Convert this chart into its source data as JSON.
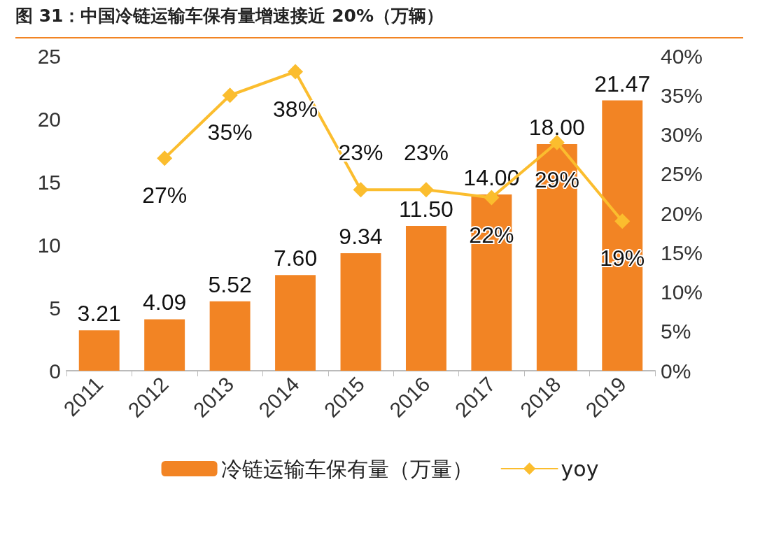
{
  "chart_data": {
    "type": "bar",
    "title": "图 31：中国冷链运输车保有量增速接近 20%（万辆）",
    "categories": [
      "2011",
      "2012",
      "2013",
      "2014",
      "2015",
      "2016",
      "2017",
      "2018",
      "2019"
    ],
    "series": [
      {
        "name": "冷链运输车保有量（万量）",
        "type": "bar",
        "color": "#f28424",
        "values": [
          3.21,
          4.09,
          5.52,
          7.6,
          9.34,
          11.5,
          14.0,
          18.0,
          21.47
        ],
        "value_labels": [
          "3.21",
          "4.09",
          "5.52",
          "7.60",
          "9.34",
          "11.50",
          "14.00",
          "18.00",
          "21.47"
        ]
      },
      {
        "name": "yoy",
        "type": "line",
        "axis": "y2",
        "color": "#fbbd2e",
        "marker": "diamond",
        "values": [
          null,
          27,
          35,
          38,
          23,
          23,
          22,
          29,
          19
        ],
        "value_labels": [
          null,
          "27%",
          "35%",
          "38%",
          "23%",
          "23%",
          "22%",
          "29%",
          "19%"
        ]
      }
    ],
    "ylim": [
      0,
      25
    ],
    "yticks": [
      0,
      5,
      10,
      15,
      20,
      25
    ],
    "y2lim": [
      0,
      40
    ],
    "y2ticks": [
      {
        "value": 0,
        "label": "0%"
      },
      {
        "value": 5,
        "label": "5%"
      },
      {
        "value": 10,
        "label": "10%"
      },
      {
        "value": 15,
        "label": "15%"
      },
      {
        "value": 20,
        "label": "20%"
      },
      {
        "value": 25,
        "label": "25%"
      },
      {
        "value": 30,
        "label": "30%"
      },
      {
        "value": 35,
        "label": "35%"
      },
      {
        "value": 40,
        "label": "40%"
      }
    ],
    "grid": false,
    "legend": "bottom"
  }
}
